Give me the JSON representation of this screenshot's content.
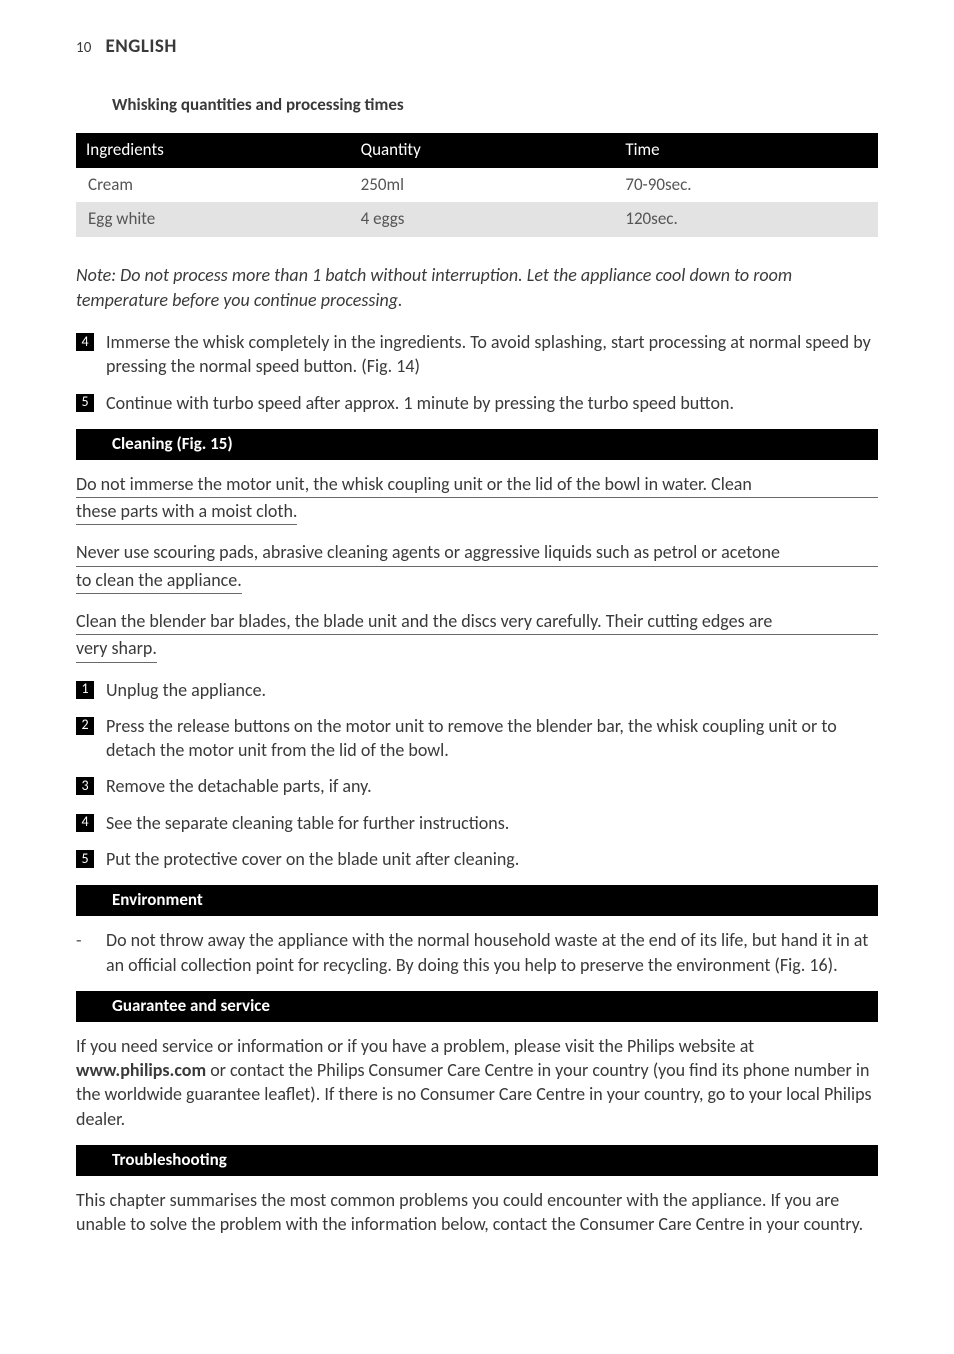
{
  "page_number": "10",
  "language_label": "ENGLISH",
  "subheading": "Whisking quantities and processing times",
  "table": {
    "columns": [
      "Ingredients",
      "Quantity",
      "Time"
    ],
    "col_widths": [
      "34%",
      "33%",
      "33%"
    ],
    "rows": [
      [
        "Cream",
        "250ml",
        "70-90sec."
      ],
      [
        "Egg white",
        "4 eggs",
        "120sec."
      ]
    ],
    "header_bg": "#000000",
    "header_color": "#ffffff",
    "row_odd_bg": "#ffffff",
    "row_even_bg": "#e3e3e3"
  },
  "note": "Note: Do not process more than 1 batch without interruption. Let the appliance cool down to room temperature before you continue processing.",
  "top_steps": [
    {
      "n": "4",
      "text": "Immerse the whisk completely in the ingredients. To avoid splashing, start processing at normal speed by pressing the normal speed button.  (Fig. 14)"
    },
    {
      "n": "5",
      "text": "Continue with turbo speed after approx. 1 minute by pressing the turbo speed button."
    }
  ],
  "cleaning": {
    "title": "Cleaning (Fig. 15)",
    "warnings": [
      {
        "lines": [
          "Do not immerse the motor unit, the whisk coupling unit or the lid of the bowl in water. Clean",
          "these parts with a moist cloth."
        ]
      },
      {
        "lines": [
          "Never use scouring pads, abrasive cleaning agents or aggressive liquids such as petrol or acetone",
          "to clean the appliance. "
        ]
      },
      {
        "lines": [
          "Clean the blender bar blades, the blade unit and the discs very carefully. Their cutting edges are",
          "very sharp."
        ]
      }
    ],
    "steps": [
      {
        "n": "1",
        "text": "Unplug the appliance."
      },
      {
        "n": "2",
        "text": "Press the release buttons on the motor unit to remove the blender bar, the whisk coupling unit or to detach the motor unit from the lid of the bowl."
      },
      {
        "n": "3",
        "text": "Remove the detachable parts, if any."
      },
      {
        "n": "4",
        "text": "See the separate cleaning table for further instructions."
      },
      {
        "n": "5",
        "text": "Put the protective cover on the blade unit after cleaning."
      }
    ]
  },
  "environment": {
    "title": "Environment",
    "bullet": "Do not throw away the appliance with the normal household waste at the end of its life, but hand it in at an official collection point for recycling. By doing this you help to preserve the environment (Fig. 16)."
  },
  "guarantee": {
    "title": "Guarantee and service",
    "pre": "If you need service or information or if you have a problem, please visit the Philips website at ",
    "bold": "www.philips.com",
    "post": " or contact the Philips Consumer Care Centre in your country (you find its phone number in the worldwide guarantee leaflet). If there is no Consumer Care Centre in your country, go to your local Philips dealer."
  },
  "troubleshooting": {
    "title": "Troubleshooting",
    "text": "This chapter summarises the most common problems you could encounter with the appliance. If you are unable to solve the problem with the information below, contact the Consumer Care Centre in your country."
  },
  "colors": {
    "text": "#3a3a3a",
    "bar_bg": "#000000",
    "bar_fg": "#ffffff",
    "underline": "#6a6a6a"
  }
}
